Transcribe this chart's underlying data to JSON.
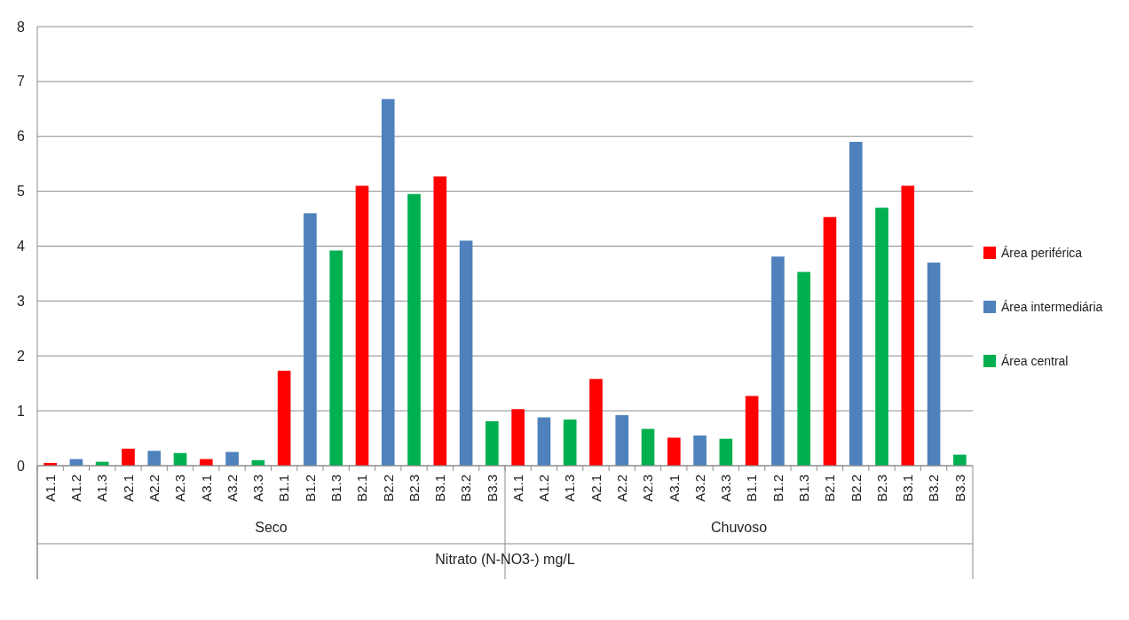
{
  "chart_data": {
    "type": "bar",
    "stacked": true,
    "xlabel": "Nitrato (N-NO3-) mg/L",
    "categories": [
      "A1.1",
      "A1.2",
      "A1.3",
      "A2.1",
      "A2.2",
      "A2.3",
      "A3.1",
      "A3.2",
      "A3.3",
      "B1.1",
      "B1.2",
      "B1.3",
      "B2.1",
      "B2.2",
      "B2.3",
      "B3.1",
      "B3.2",
      "B3.3",
      "A1.1",
      "A1.2",
      "A1.3",
      "A2.1",
      "A2.2",
      "A2.3",
      "A3.1",
      "A3.2",
      "A3.3",
      "B1.1",
      "B1.2",
      "B1.3",
      "B2.1",
      "B2.2",
      "B2.3",
      "B3.1",
      "B3.2",
      "B3.3"
    ],
    "series": [
      {
        "name": "Área periférica",
        "color": "#ff0000",
        "values": [
          0.05,
          null,
          null,
          0.31,
          null,
          null,
          0.12,
          null,
          null,
          1.73,
          null,
          null,
          5.1,
          null,
          null,
          5.27,
          null,
          null,
          1.03,
          null,
          null,
          1.58,
          null,
          null,
          0.51,
          null,
          null,
          1.27,
          null,
          null,
          4.53,
          null,
          null,
          5.1,
          null,
          null
        ]
      },
      {
        "name": "Área intermediária",
        "color": "#4f81bd",
        "values": [
          null,
          0.12,
          null,
          null,
          0.27,
          null,
          null,
          0.25,
          null,
          null,
          4.6,
          null,
          null,
          6.68,
          null,
          null,
          4.1,
          null,
          null,
          0.88,
          null,
          null,
          0.92,
          null,
          null,
          0.55,
          null,
          null,
          3.81,
          null,
          null,
          5.9,
          null,
          null,
          3.7,
          null
        ]
      },
      {
        "name": "Área central",
        "color": "#00b050",
        "values": [
          null,
          null,
          0.07,
          null,
          null,
          0.23,
          null,
          null,
          0.1,
          null,
          null,
          3.92,
          null,
          null,
          4.95,
          null,
          null,
          0.81,
          null,
          null,
          0.84,
          null,
          null,
          0.67,
          null,
          null,
          0.49,
          null,
          null,
          3.53,
          null,
          null,
          4.7,
          null,
          null,
          0.2
        ]
      }
    ],
    "annotations": [
      "Seco",
      "Chuvoso"
    ],
    "ylim": [
      0,
      8
    ],
    "yticks": [
      0,
      1,
      2,
      3,
      4,
      5,
      6,
      7,
      8
    ],
    "grid": "y",
    "legend": "right"
  }
}
